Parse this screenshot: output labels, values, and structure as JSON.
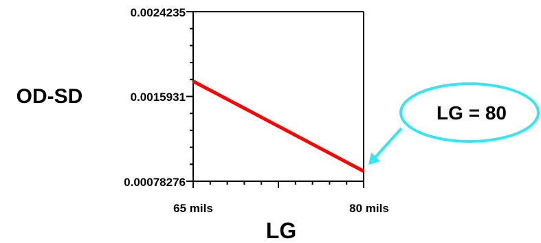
{
  "chart_data": {
    "type": "line",
    "xlabel": "LG",
    "ylabel": "OD-SD",
    "x_tick_labels": [
      "65 mils",
      "80 mils"
    ],
    "y_tick_labels": [
      "0.0024235",
      "0.0015931",
      "0.00078276"
    ],
    "x": [
      65,
      80
    ],
    "xlim": [
      65,
      80
    ],
    "ylim": [
      0.00078276,
      0.0024235
    ],
    "series": [
      {
        "values": [
          0.00175,
          0.00088
        ],
        "color": "#ff0000"
      }
    ],
    "annotation": {
      "text": "LG = 80",
      "x": 80,
      "y": 0.00088,
      "outline_color": "#33e6f2"
    },
    "grid": false
  }
}
